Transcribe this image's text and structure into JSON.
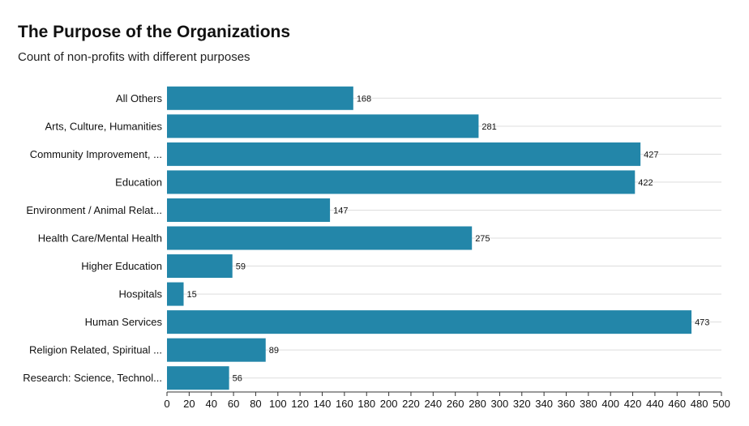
{
  "chart_data": {
    "type": "bar",
    "orientation": "horizontal",
    "title": "The Purpose of the Organizations",
    "subtitle": "Count of non-profits with different purposes",
    "categories": [
      "All Others",
      "Arts, Culture, Humanities",
      "Community Improvement, ...",
      "Education",
      "Environment / Animal Relat...",
      "Health Care/Mental Health",
      "Higher Education",
      "Hospitals",
      "Human Services",
      "Religion Related, Spiritual ...",
      "Research: Science, Technol..."
    ],
    "values": [
      168,
      281,
      427,
      422,
      147,
      275,
      59,
      15,
      473,
      89,
      56
    ],
    "xlim": [
      0,
      500
    ],
    "xticks": [
      0,
      20,
      40,
      60,
      80,
      100,
      120,
      140,
      160,
      180,
      200,
      220,
      240,
      260,
      280,
      300,
      320,
      340,
      360,
      380,
      400,
      420,
      440,
      460,
      480,
      500
    ],
    "xlabel": "",
    "ylabel": "",
    "grid": true,
    "legend": "none",
    "bar_color": "#2386a9",
    "grid_color": "#dddddd"
  }
}
